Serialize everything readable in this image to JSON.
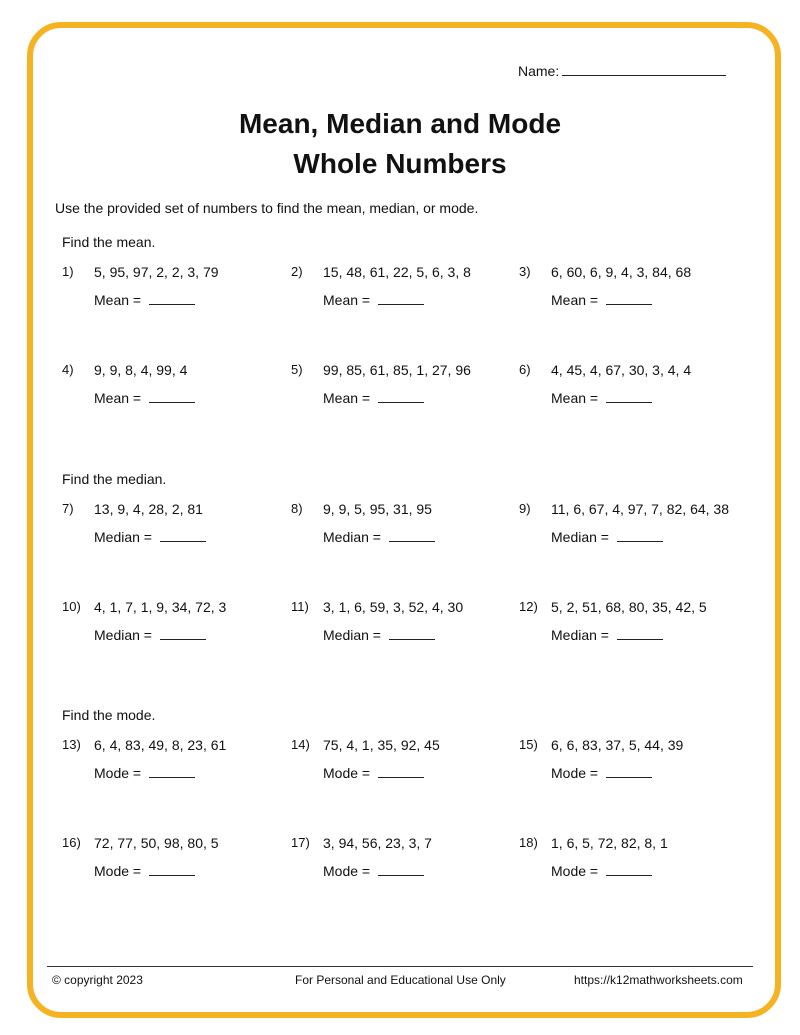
{
  "header": {
    "name_label": "Name:",
    "title_line1": "Mean, Median and Mode",
    "title_line2": "Whole Numbers"
  },
  "instructions": "Use the provided set of numbers to find the mean, median, or mode.",
  "sections": [
    {
      "heading": "Find the mean.",
      "answer_label": "Mean =",
      "problems": [
        {
          "number": "1)",
          "values": "5, 95, 97, 2, 2, 3, 79"
        },
        {
          "number": "2)",
          "values": "15, 48, 61, 22, 5, 6, 3, 8"
        },
        {
          "number": "3)",
          "values": "6, 60, 6, 9, 4, 3, 84, 68"
        },
        {
          "number": "4)",
          "values": "9, 9, 8, 4, 99, 4"
        },
        {
          "number": "5)",
          "values": "99, 85, 61, 85, 1, 27, 96"
        },
        {
          "number": "6)",
          "values": "4, 45, 4, 67, 30, 3, 4, 4"
        }
      ]
    },
    {
      "heading": "Find the median.",
      "answer_label": "Median =",
      "problems": [
        {
          "number": "7)",
          "values": "13, 9, 4, 28, 2, 81"
        },
        {
          "number": "8)",
          "values": "9, 9, 5, 95, 31, 95"
        },
        {
          "number": "9)",
          "values": "11, 6, 67, 4, 97, 7, 82, 64, 38"
        },
        {
          "number": "10)",
          "values": "4, 1, 7, 1, 9, 34, 72, 3"
        },
        {
          "number": "11)",
          "values": "3, 1, 6, 59, 3, 52, 4, 30"
        },
        {
          "number": "12)",
          "values": "5, 2, 51, 68, 80, 35, 42, 5"
        }
      ]
    },
    {
      "heading": "Find the mode.",
      "answer_label": "Mode =",
      "problems": [
        {
          "number": "13)",
          "values": "6, 4, 83, 49, 8, 23, 61"
        },
        {
          "number": "14)",
          "values": "75, 4, 1, 35, 92, 45"
        },
        {
          "number": "15)",
          "values": "6, 6, 83, 37, 5, 44, 39"
        },
        {
          "number": "16)",
          "values": "72, 77, 50, 98, 80, 5"
        },
        {
          "number": "17)",
          "values": "3, 94, 56, 23, 3, 7"
        },
        {
          "number": "18)",
          "values": "1, 6, 5, 72, 82, 8, 1"
        }
      ]
    }
  ],
  "footer": {
    "copyright": "© copyright 2023",
    "usage": "For Personal and Educational Use Only",
    "url": "https://k12mathworksheets.com"
  },
  "colors": {
    "border": "#f5b323"
  }
}
